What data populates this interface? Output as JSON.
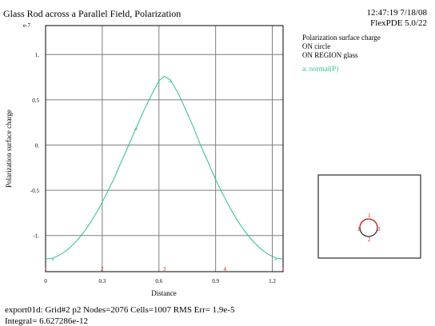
{
  "header": {
    "title": "Glass Rod across a Parallel Field, Polarization",
    "timestamp": "12:47:19 7/18/08",
    "software": "FlexPDE 5.0/22"
  },
  "legend": {
    "lines": [
      "Polarization surface charge",
      "ON circle",
      "ON REGION glass"
    ],
    "series_label": "a: normal(P)"
  },
  "footer": {
    "line1": "export01d:  Grid#2  p2  Nodes=2076 Cells=1007 RMS Err= 1.9e-5",
    "line2": "Integral=  6.627286e-12"
  },
  "inset": {
    "markers": [
      "1",
      "2",
      "3"
    ]
  },
  "chart_data": {
    "type": "line",
    "title": "",
    "xlabel": "Distance",
    "ylabel": "Polarization surface charge",
    "y_multiplier": "e-7",
    "xlim": [
      0,
      1.257
    ],
    "ylim": [
      -1.4,
      1.32
    ],
    "x_ticks": [
      "0",
      "0.3",
      "0.6",
      "0.9",
      "1.2"
    ],
    "y_ticks": [
      "1.",
      "0.5",
      "0.",
      "-0.5",
      "-1."
    ],
    "x_tick_values": [
      0,
      0.3,
      0.6,
      0.9,
      1.2
    ],
    "y_tick_values": [
      1,
      0.5,
      0,
      -0.5,
      -1
    ],
    "grid": true,
    "bottom_markers": [
      "1",
      "2",
      "3",
      "4",
      "1"
    ],
    "series": [
      {
        "name": "a",
        "color": "#2fbf8f",
        "x": [
          0.0,
          0.04,
          0.08,
          0.12,
          0.16,
          0.2,
          0.24,
          0.28,
          0.32,
          0.36,
          0.4,
          0.44,
          0.48,
          0.52,
          0.56,
          0.6,
          0.628,
          0.66,
          0.7,
          0.74,
          0.78,
          0.82,
          0.86,
          0.9,
          0.94,
          0.98,
          1.02,
          1.06,
          1.1,
          1.14,
          1.18,
          1.22,
          1.257
        ],
        "values": [
          -1.26,
          -1.25,
          -1.21,
          -1.15,
          -1.07,
          -0.97,
          -0.85,
          -0.71,
          -0.55,
          -0.38,
          -0.19,
          0.0,
          0.19,
          0.38,
          0.55,
          0.71,
          0.76,
          0.72,
          0.58,
          0.4,
          0.21,
          0.0,
          -0.19,
          -0.38,
          -0.55,
          -0.71,
          -0.85,
          -0.97,
          -1.07,
          -1.15,
          -1.21,
          -1.25,
          -1.26
        ]
      }
    ]
  }
}
